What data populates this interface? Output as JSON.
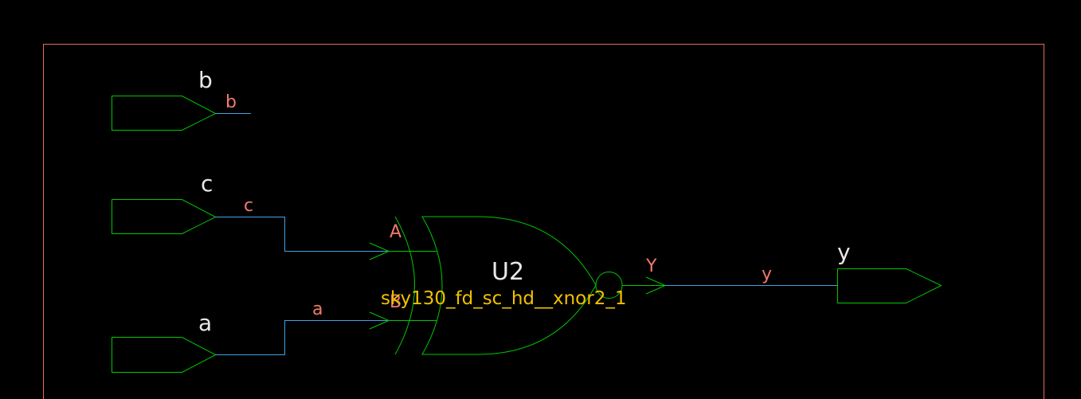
{
  "colors": {
    "background": "#000000",
    "border": "#e06d5b",
    "symbol": "#00c800",
    "wire": "#3fa4e6",
    "port_text": "#e8e8e8",
    "net_text": "#f07a6a",
    "cell_text": "#f0c000"
  },
  "ports": {
    "b": "b",
    "c": "c",
    "a": "a",
    "y": "y"
  },
  "nets": {
    "b": "b",
    "c": "c",
    "a": "a",
    "y": "y"
  },
  "gate": {
    "instance": "U2",
    "cell": "sky130_fd_sc_hd__xnor2_1",
    "pin_a": "A",
    "pin_b": "B",
    "pin_y": "Y"
  }
}
